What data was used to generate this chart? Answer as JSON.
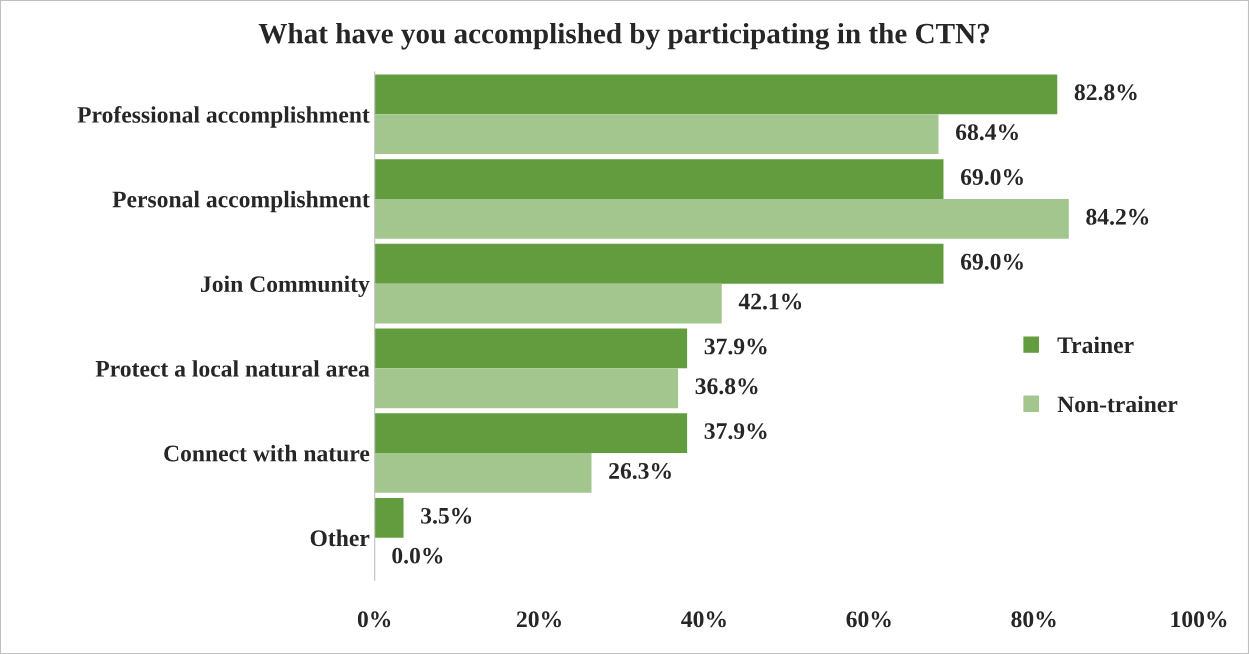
{
  "chart_data": {
    "type": "bar",
    "orientation": "horizontal",
    "title": "What have you accomplished by participating in the CTN?",
    "categories": [
      "Professional accomplishment",
      "Personal accomplishment",
      "Join Community",
      "Protect a local natural area",
      "Connect with nature",
      "Other"
    ],
    "series": [
      {
        "name": "Trainer",
        "color": "#629c3f",
        "values": [
          82.8,
          69.0,
          69.0,
          37.9,
          37.9,
          3.5
        ],
        "value_labels": [
          "82.8%",
          "69.0%",
          "69.0%",
          "37.9%",
          "37.9%",
          "3.5%"
        ]
      },
      {
        "name": "Non-trainer",
        "color": "#a3c68e",
        "values": [
          68.4,
          84.2,
          42.1,
          36.8,
          26.3,
          0.0
        ],
        "value_labels": [
          "68.4%",
          "84.2%",
          "42.1%",
          "36.8%",
          "26.3%",
          "0.0%"
        ]
      }
    ],
    "xlim": [
      0,
      100
    ],
    "xticks": [
      {
        "value": 0,
        "label": "0%"
      },
      {
        "value": 20,
        "label": "20%"
      },
      {
        "value": 40,
        "label": "40%"
      },
      {
        "value": 60,
        "label": "60%"
      },
      {
        "value": 80,
        "label": "80%"
      },
      {
        "value": 100,
        "label": "100%"
      }
    ],
    "grid": false,
    "legend": "right"
  }
}
